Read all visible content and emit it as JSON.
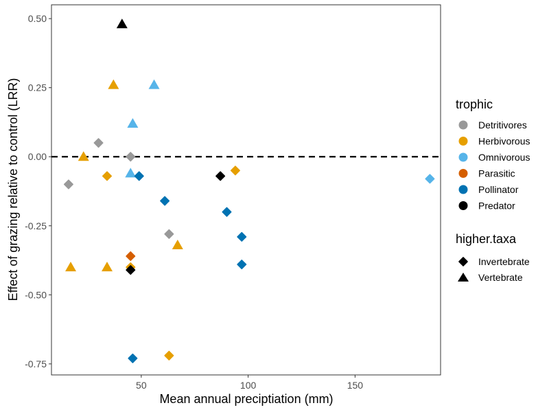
{
  "chart_data": {
    "type": "scatter",
    "title": "",
    "xlabel": "Mean annual preciptiation (mm)",
    "ylabel": "Effect of grazing relative to control (LRR)",
    "xlim": [
      8,
      190
    ],
    "ylim": [
      -0.79,
      0.55
    ],
    "xticks": [
      50,
      100,
      150
    ],
    "yticks": [
      0.5,
      0.25,
      0.0,
      -0.25,
      -0.5,
      -0.75
    ],
    "ytick_labels": [
      "0.50",
      "0.25",
      "0.00",
      "-0.25",
      "-0.50",
      "-0.75"
    ],
    "xtick_labels": [
      "50",
      "100",
      "150"
    ],
    "grid": false,
    "reference_line": {
      "y": 0,
      "style": "dashed",
      "color": "#000000"
    },
    "legend": {
      "placement": "right",
      "trophic": {
        "title": "trophic",
        "entries": [
          {
            "label": "Detritivores",
            "color": "#999999"
          },
          {
            "label": "Herbivorous",
            "color": "#E69F00"
          },
          {
            "label": "Omnivorous",
            "color": "#56B4E9"
          },
          {
            "label": "Parasitic",
            "color": "#D55E00"
          },
          {
            "label": "Pollinator",
            "color": "#0072B2"
          },
          {
            "label": "Predator",
            "color": "#000000"
          }
        ]
      },
      "higher_taxa": {
        "title": "higher.taxa",
        "entries": [
          {
            "label": "Invertebrate",
            "shape": "diamond"
          },
          {
            "label": "Vertebrate",
            "shape": "triangle"
          }
        ]
      }
    },
    "points": [
      {
        "x": 41,
        "y": 0.48,
        "trophic": "Predator",
        "taxa": "Vertebrate"
      },
      {
        "x": 37,
        "y": 0.26,
        "trophic": "Herbivorous",
        "taxa": "Vertebrate"
      },
      {
        "x": 56,
        "y": 0.26,
        "trophic": "Omnivorous",
        "taxa": "Vertebrate"
      },
      {
        "x": 46,
        "y": 0.12,
        "trophic": "Omnivorous",
        "taxa": "Vertebrate"
      },
      {
        "x": 30,
        "y": 0.05,
        "trophic": "Detritivores",
        "taxa": "Invertebrate"
      },
      {
        "x": 23,
        "y": 0.0,
        "trophic": "Herbivorous",
        "taxa": "Vertebrate"
      },
      {
        "x": 45,
        "y": 0.0,
        "trophic": "Detritivores",
        "taxa": "Invertebrate"
      },
      {
        "x": 45,
        "y": -0.06,
        "trophic": "Omnivorous",
        "taxa": "Vertebrate"
      },
      {
        "x": 34,
        "y": -0.07,
        "trophic": "Herbivorous",
        "taxa": "Invertebrate"
      },
      {
        "x": 49,
        "y": -0.07,
        "trophic": "Pollinator",
        "taxa": "Invertebrate"
      },
      {
        "x": 16,
        "y": -0.1,
        "trophic": "Detritivores",
        "taxa": "Invertebrate"
      },
      {
        "x": 87,
        "y": -0.07,
        "trophic": "Predator",
        "taxa": "Invertebrate"
      },
      {
        "x": 94,
        "y": -0.05,
        "trophic": "Herbivorous",
        "taxa": "Invertebrate"
      },
      {
        "x": 185,
        "y": -0.08,
        "trophic": "Omnivorous",
        "taxa": "Invertebrate"
      },
      {
        "x": 61,
        "y": -0.16,
        "trophic": "Pollinator",
        "taxa": "Invertebrate"
      },
      {
        "x": 90,
        "y": -0.2,
        "trophic": "Pollinator",
        "taxa": "Invertebrate"
      },
      {
        "x": 63,
        "y": -0.28,
        "trophic": "Detritivores",
        "taxa": "Invertebrate"
      },
      {
        "x": 97,
        "y": -0.29,
        "trophic": "Pollinator",
        "taxa": "Invertebrate"
      },
      {
        "x": 67,
        "y": -0.32,
        "trophic": "Herbivorous",
        "taxa": "Vertebrate"
      },
      {
        "x": 45,
        "y": -0.36,
        "trophic": "Parasitic",
        "taxa": "Invertebrate"
      },
      {
        "x": 97,
        "y": -0.39,
        "trophic": "Pollinator",
        "taxa": "Invertebrate"
      },
      {
        "x": 17,
        "y": -0.4,
        "trophic": "Herbivorous",
        "taxa": "Vertebrate"
      },
      {
        "x": 34,
        "y": -0.4,
        "trophic": "Herbivorous",
        "taxa": "Vertebrate"
      },
      {
        "x": 45,
        "y": -0.4,
        "trophic": "Herbivorous",
        "taxa": "Invertebrate"
      },
      {
        "x": 45,
        "y": -0.41,
        "trophic": "Predator",
        "taxa": "Invertebrate"
      },
      {
        "x": 63,
        "y": -0.72,
        "trophic": "Herbivorous",
        "taxa": "Invertebrate"
      },
      {
        "x": 46,
        "y": -0.73,
        "trophic": "Pollinator",
        "taxa": "Invertebrate"
      }
    ]
  }
}
